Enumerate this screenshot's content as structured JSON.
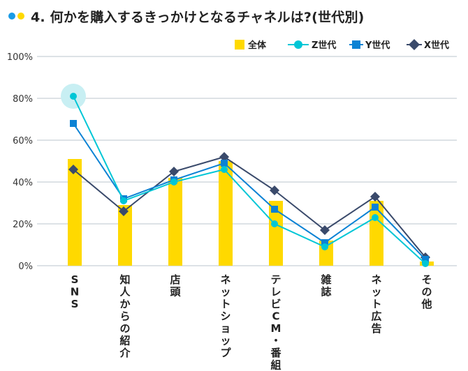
{
  "header": {
    "title": "4. 何かを購入するきっかけとなるチャネルは?(世代別)",
    "dot_colors": [
      "#1a9be6",
      "#ffd900"
    ]
  },
  "chart_data": {
    "type": "bar",
    "title": "4. 何かを購入するきっかけとなるチャネルは?(世代別)",
    "xlabel": "",
    "ylabel": "",
    "ylim": [
      0,
      100
    ],
    "yticks": [
      0,
      20,
      40,
      60,
      80,
      100
    ],
    "ytick_labels": [
      "0%",
      "20%",
      "40%",
      "60%",
      "80%",
      "100%"
    ],
    "grid": true,
    "legend_position": "top-right",
    "categories": [
      "SNS",
      "知人からの紹介",
      "店頭",
      "ネットショップ",
      "テレビCM・番組",
      "雑誌",
      "ネット広告",
      "その他"
    ],
    "series": [
      {
        "name": "全体",
        "type": "bar",
        "color": "#ffd900",
        "values": [
          51,
          29,
          42,
          50,
          31,
          12,
          31,
          2
        ]
      },
      {
        "name": "Z世代",
        "type": "line",
        "marker": "circle",
        "color": "#00c6d6",
        "values": [
          81,
          31,
          40,
          46,
          20,
          9,
          23,
          1
        ]
      },
      {
        "name": "Y世代",
        "type": "line",
        "marker": "square",
        "color": "#0b82d4",
        "values": [
          68,
          32,
          41,
          49,
          27,
          11,
          28,
          3
        ]
      },
      {
        "name": "X世代",
        "type": "line",
        "marker": "diamond",
        "color": "#3a4a6b",
        "values": [
          46,
          26,
          45,
          52,
          36,
          17,
          33,
          4
        ]
      }
    ],
    "highlight": {
      "series": "Z世代",
      "category": "SNS",
      "color": "#c8eff3"
    }
  },
  "colors": {
    "grid": "#dde2e6"
  }
}
